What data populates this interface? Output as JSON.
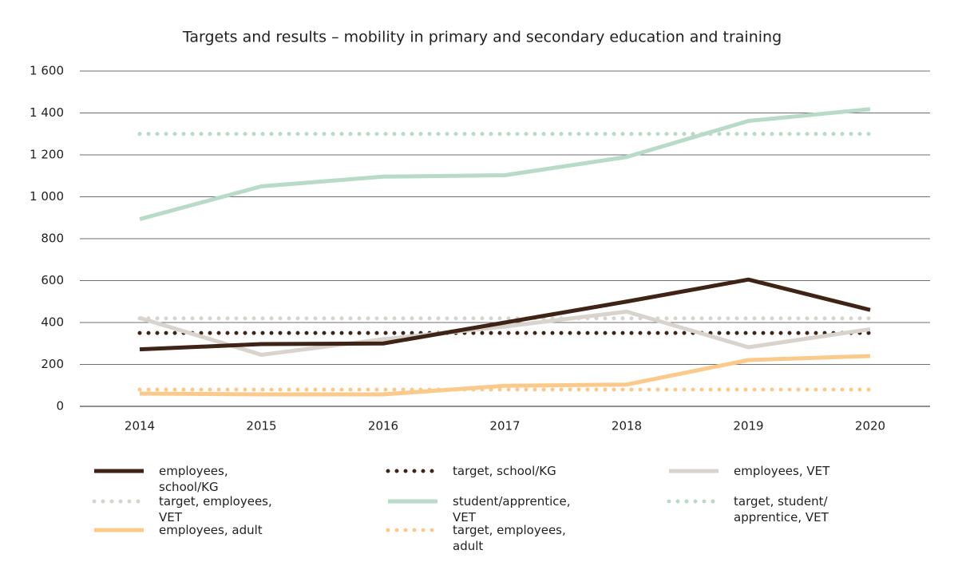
{
  "chart_data": {
    "type": "line",
    "title": "Targets and results – mobility in primary and secondary education and training",
    "categories": [
      "2014",
      "2015",
      "2016",
      "2017",
      "2018",
      "2019",
      "2020"
    ],
    "ylim": [
      0,
      1600
    ],
    "yticks": [
      0,
      200,
      400,
      600,
      800,
      {
        "value": 1000,
        "label": "1 000"
      },
      {
        "value": 1200,
        "label": "1 200"
      },
      {
        "value": 1400,
        "label": "1 400"
      },
      {
        "value": 1600,
        "label": "1 600"
      }
    ],
    "grid": true,
    "series": [
      {
        "name": "employees, school/KG",
        "color": "#3f2316",
        "style": "solid",
        "values": [
          272,
          297,
          300,
          400,
          500,
          605,
          460
        ]
      },
      {
        "name": "target, school/KG",
        "color": "#3f2316",
        "style": "dotted",
        "values": [
          350,
          350,
          350,
          350,
          350,
          350,
          350
        ]
      },
      {
        "name": "employees, VET",
        "color": "#d8d3cc",
        "style": "solid",
        "values": [
          422,
          246,
          320,
          381,
          452,
          282,
          368
        ]
      },
      {
        "name": "target, employees, VET",
        "color": "#d8d3cc",
        "style": "dotted",
        "values": [
          420,
          420,
          420,
          420,
          420,
          420,
          420
        ]
      },
      {
        "name": "student/apprentice, VET",
        "color": "#b7dbc6",
        "style": "solid",
        "values": [
          893,
          1050,
          1096,
          1103,
          1190,
          1362,
          1418
        ]
      },
      {
        "name": "target, student/ apprentice, VET",
        "color": "#b7dbc6",
        "style": "dotted",
        "values": [
          1300,
          1300,
          1300,
          1300,
          1300,
          1300,
          1300
        ]
      },
      {
        "name": "employees, adult",
        "color": "#fbc98a",
        "style": "solid",
        "values": [
          61,
          57,
          57,
          98,
          104,
          221,
          240
        ]
      },
      {
        "name": "target, employees, adult",
        "color": "#fbc98a",
        "style": "dotted",
        "values": [
          80,
          80,
          80,
          80,
          80,
          80,
          80
        ]
      }
    ]
  }
}
